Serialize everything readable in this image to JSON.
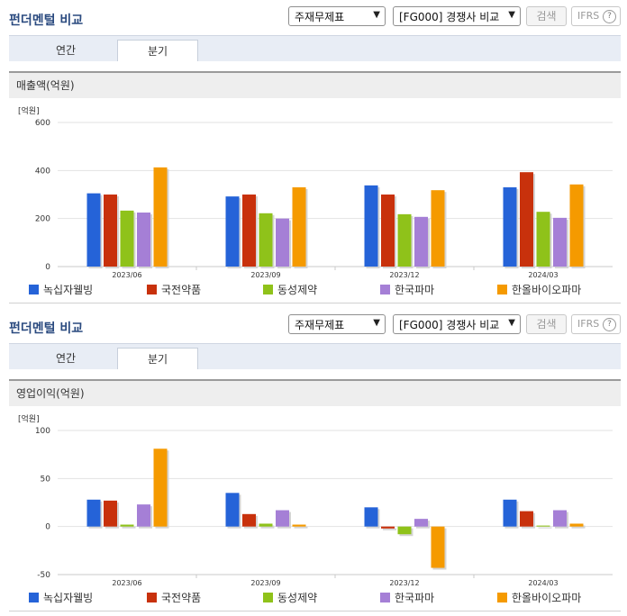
{
  "sections": [
    {
      "title": "펀더멘털 비교",
      "select_type": "주재무제표",
      "select_group": "[FG000] 경쟁사 비교",
      "search_label": "검색",
      "ifrs_label": "IFRS",
      "help_glyph": "?",
      "tabs": [
        {
          "label": "연간"
        },
        {
          "label": "분기"
        }
      ],
      "active_tab": 1,
      "metric_title": "매출액(억원)"
    },
    {
      "title": "펀더멘털 비교",
      "select_type": "주재무제표",
      "select_group": "[FG000] 경쟁사 비교",
      "search_label": "검색",
      "ifrs_label": "IFRS",
      "help_glyph": "?",
      "tabs": [
        {
          "label": "연간"
        },
        {
          "label": "분기"
        }
      ],
      "active_tab": 1,
      "metric_title": "영업이익(억원)"
    }
  ],
  "icons": {
    "dropdown": "chevron-down-icon",
    "help": "question-circle-icon"
  },
  "chart_data": [
    {
      "type": "bar",
      "unit_label": "[억원]",
      "categories": [
        "2023/06",
        "2023/09",
        "2023/12",
        "2024/03"
      ],
      "ylim": [
        0,
        600
      ],
      "yticks": [
        0,
        200,
        400,
        600
      ],
      "grid": true,
      "legend_position": "bottom",
      "series": [
        {
          "name": "녹십자웰빙",
          "color": "#2563d8",
          "values": [
            305,
            292,
            338,
            330
          ]
        },
        {
          "name": "국전약품",
          "color": "#c8310c",
          "values": [
            300,
            300,
            300,
            393
          ]
        },
        {
          "name": "동성제약",
          "color": "#8fc21a",
          "values": [
            233,
            222,
            218,
            228
          ]
        },
        {
          "name": "한국파마",
          "color": "#a57fd6",
          "values": [
            225,
            200,
            207,
            203
          ]
        },
        {
          "name": "한올바이오파마",
          "color": "#f59a00",
          "values": [
            413,
            330,
            318,
            342
          ]
        }
      ]
    },
    {
      "type": "bar",
      "unit_label": "[억원]",
      "categories": [
        "2023/06",
        "2023/09",
        "2023/12",
        "2024/03"
      ],
      "ylim": [
        -50,
        100
      ],
      "yticks": [
        -50,
        0,
        50,
        100
      ],
      "grid": true,
      "legend_position": "bottom",
      "series": [
        {
          "name": "녹십자웰빙",
          "color": "#2563d8",
          "values": [
            28,
            35,
            20,
            28
          ]
        },
        {
          "name": "국전약품",
          "color": "#c8310c",
          "values": [
            27,
            13,
            -2,
            16
          ]
        },
        {
          "name": "동성제약",
          "color": "#8fc21a",
          "values": [
            2,
            3,
            -8,
            1
          ]
        },
        {
          "name": "한국파마",
          "color": "#a57fd6",
          "values": [
            23,
            17,
            8,
            17
          ]
        },
        {
          "name": "한올바이오파마",
          "color": "#f59a00",
          "values": [
            81,
            2,
            -43,
            3
          ]
        }
      ]
    }
  ]
}
